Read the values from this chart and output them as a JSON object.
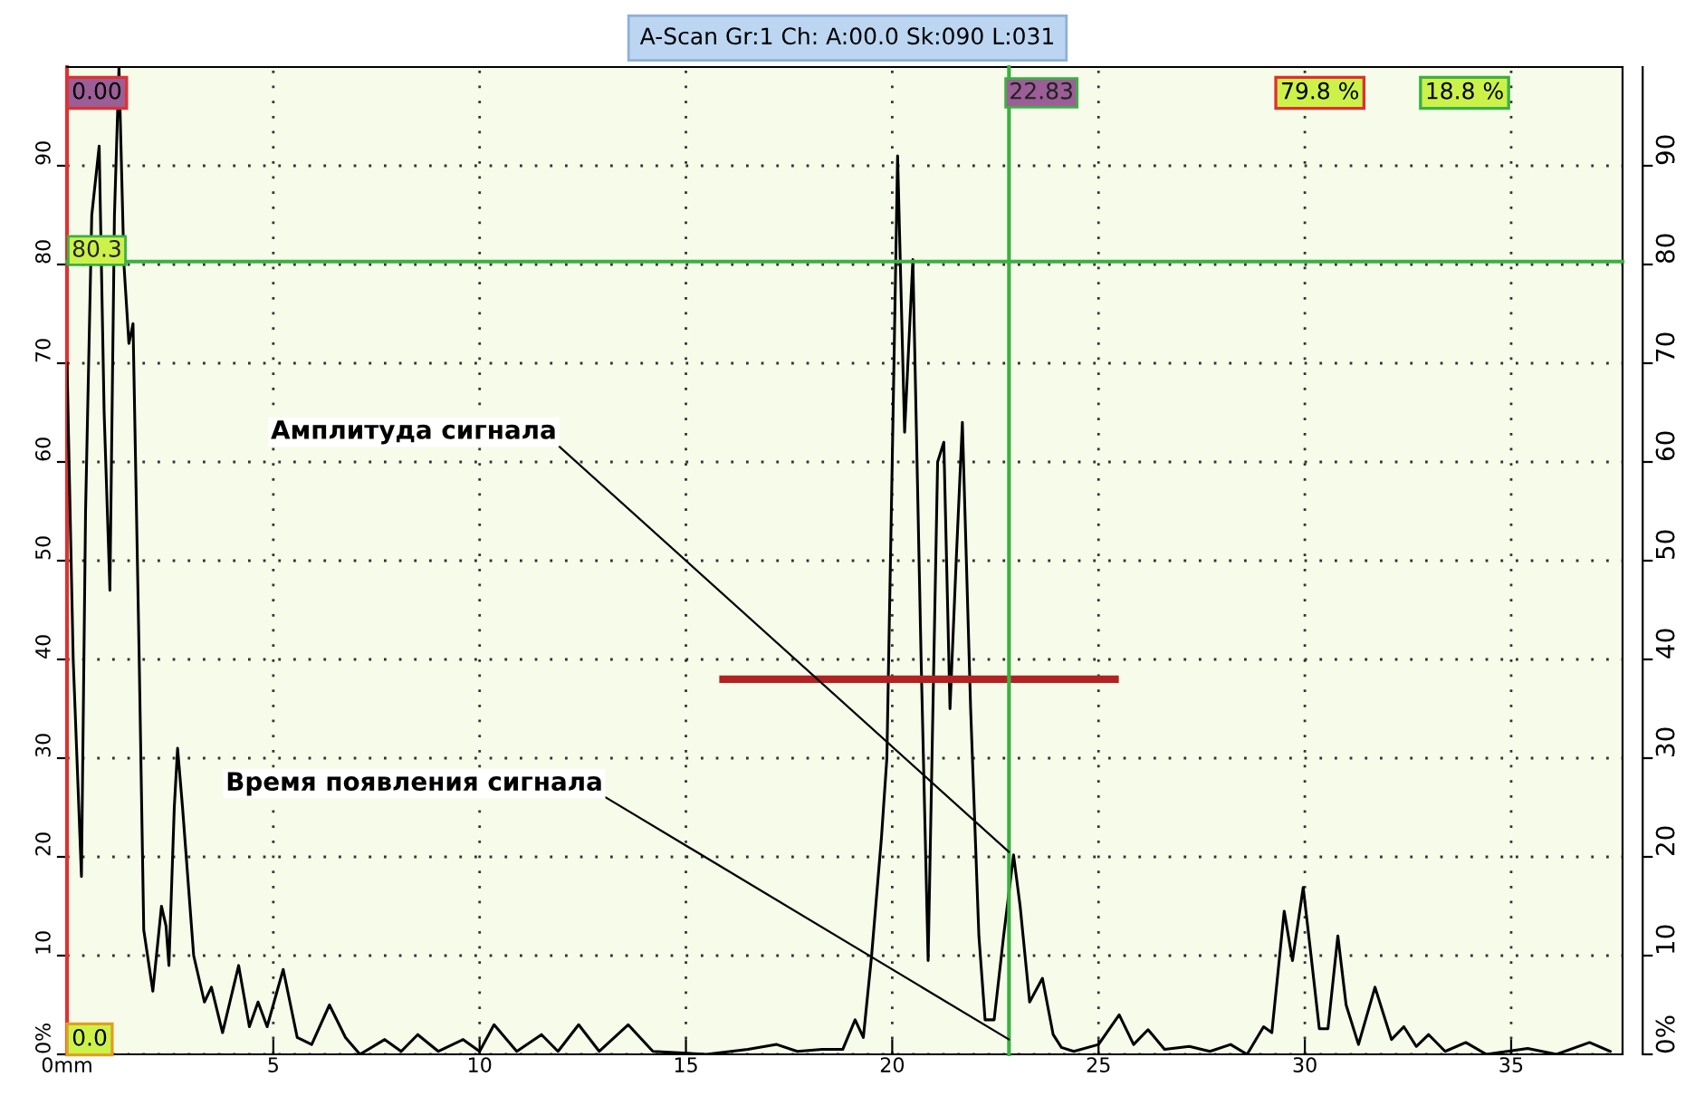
{
  "chart_data": {
    "type": "line",
    "title": "A-Scan Gr:1 Ch: A:00.0 Sk:090 L:031",
    "x": [
      0.0,
      0.15,
      0.35,
      0.45,
      0.6,
      0.78,
      0.9,
      1.04,
      1.15,
      1.26,
      1.38,
      1.5,
      1.6,
      1.75,
      1.86,
      2.08,
      2.29,
      2.4,
      2.47,
      2.6,
      2.68,
      2.8,
      3.07,
      3.33,
      3.5,
      3.77,
      4.16,
      4.42,
      4.63,
      4.85,
      5.24,
      5.58,
      5.93,
      6.36,
      6.75,
      7.1,
      7.7,
      8.1,
      8.5,
      9.0,
      9.6,
      10.0,
      10.35,
      10.9,
      11.5,
      11.9,
      12.4,
      12.9,
      13.6,
      14.2,
      15.5,
      16.5,
      17.2,
      17.7,
      18.3,
      18.8,
      19.1,
      19.3,
      19.5,
      19.74,
      19.87,
      20.0,
      20.13,
      20.3,
      20.5,
      20.7,
      20.87,
      21.1,
      21.25,
      21.4,
      21.55,
      21.7,
      21.9,
      22.1,
      22.25,
      22.47,
      22.7,
      22.94,
      23.1,
      23.33,
      23.64,
      23.9,
      24.1,
      24.4,
      25.0,
      25.5,
      25.85,
      26.2,
      26.6,
      27.2,
      27.7,
      28.2,
      28.6,
      29.0,
      29.2,
      29.5,
      29.7,
      29.96,
      30.15,
      30.35,
      30.56,
      30.8,
      31.0,
      31.3,
      31.7,
      32.1,
      32.4,
      32.7,
      33.0,
      33.4,
      33.9,
      34.4,
      35.4,
      36.1,
      36.9,
      37.4
    ],
    "series": [
      {
        "color": "#000000",
        "values": [
          70,
          40,
          18,
          55,
          85,
          92,
          65,
          47,
          85,
          100,
          80,
          72,
          74,
          40,
          12.6,
          6.4,
          15,
          13,
          9,
          25,
          31,
          25,
          10,
          5.3,
          6.8,
          2.2,
          9,
          2.8,
          5.3,
          2.8,
          8.6,
          1.7,
          1,
          5,
          1.7,
          0,
          1.5,
          0.3,
          2,
          0.3,
          1.5,
          0.3,
          3,
          0.3,
          2,
          0.3,
          3,
          0.3,
          3,
          0.3,
          0,
          0.5,
          1,
          0.3,
          0.5,
          0.5,
          3.5,
          1.7,
          10,
          22,
          30,
          60,
          91,
          63,
          80.5,
          40,
          9.5,
          60,
          62,
          35,
          50,
          64,
          35,
          12,
          3.5,
          3.5,
          12,
          20.2,
          15,
          5.3,
          7.7,
          2,
          0.7,
          0.3,
          1,
          4,
          1,
          2.5,
          0.5,
          0.8,
          0.3,
          1,
          0,
          2.8,
          2.2,
          14.5,
          9.5,
          16.9,
          10,
          2.6,
          2.6,
          12,
          5,
          1,
          6.8,
          1.5,
          2.8,
          0.8,
          2,
          0.3,
          1.2,
          0,
          0.6,
          0,
          1.2,
          0.3
        ]
      },
      {
        "color": "#b22222",
        "x": [
          15.9,
          25.4
        ],
        "values": [
          38,
          38
        ]
      }
    ],
    "xlim": [
      0,
      37.7
    ],
    "xticks": [
      {
        "value": 0,
        "label": "0mm"
      },
      5,
      10,
      15,
      20,
      25,
      30,
      35
    ],
    "ylim": [
      0,
      100
    ],
    "yticks": [
      {
        "value": 0,
        "label": "0%"
      },
      10,
      20,
      30,
      40,
      50,
      60,
      70,
      80,
      90
    ],
    "y2lim": [
      0,
      100
    ],
    "y2ticks": [
      {
        "value": 0,
        "label": "0%"
      },
      10,
      20,
      30,
      40,
      50,
      60,
      70,
      80,
      90
    ],
    "grid": true,
    "line_style": "solid",
    "ref_lines": [
      {
        "axis": "x",
        "value": 22.83,
        "label": "22.83",
        "color": "#3cb043"
      },
      {
        "axis": "y",
        "value": 80.3,
        "label": "80.3",
        "color": "#3cb043"
      }
    ],
    "annotations": [
      {
        "text": "Амплитуда сигнала",
        "x": 22.83,
        "y": 20.5
      },
      {
        "text": "Время появления сигнала",
        "x": 22.83,
        "y": 1.5
      },
      "0.00",
      "0.0",
      "79.8 %",
      "18.8 %"
    ]
  }
}
